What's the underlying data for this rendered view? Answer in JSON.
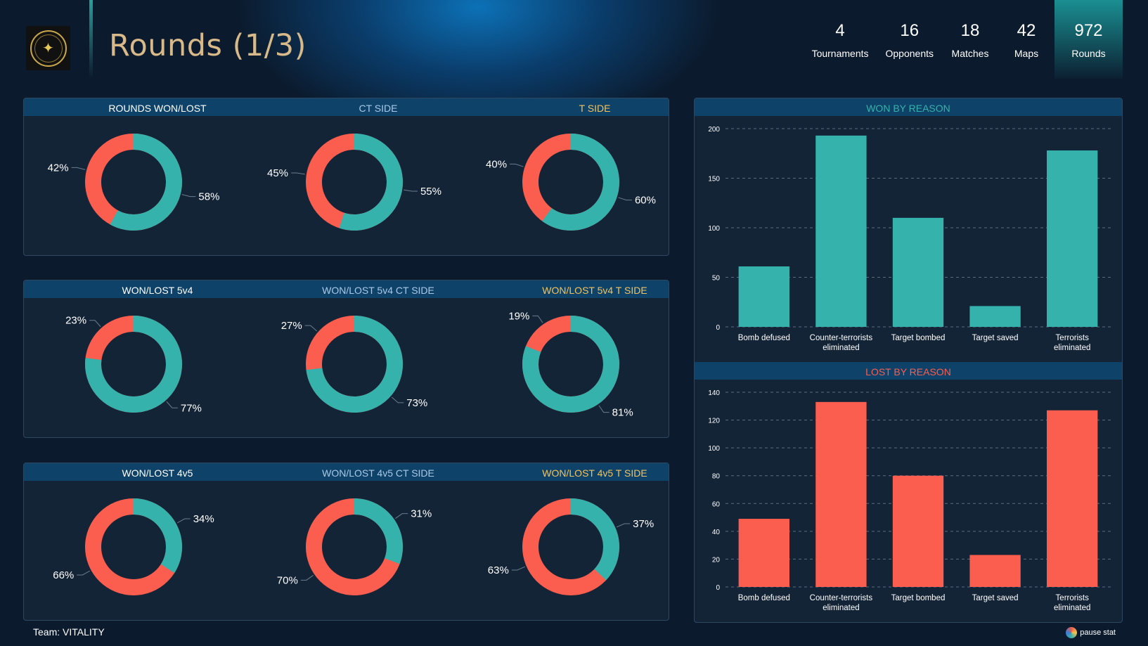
{
  "header": {
    "title": "Rounds (1/3)",
    "stats": [
      {
        "value": "4",
        "label": "Tournaments"
      },
      {
        "value": "16",
        "label": "Opponents"
      },
      {
        "value": "18",
        "label": "Matches"
      },
      {
        "value": "42",
        "label": "Maps"
      },
      {
        "value": "972",
        "label": "Rounds"
      }
    ],
    "active_stat": "Rounds"
  },
  "colors": {
    "won": "#35b2ab",
    "lost": "#fb5d4e",
    "header_white": "#ffffff",
    "header_blue": "#a9c9e8",
    "header_gold": "#f3c35c"
  },
  "footer": {
    "team": "Team: VITALITY",
    "brand": "pause stat"
  },
  "chart_data": [
    {
      "type": "pie",
      "title": "ROUNDS WON/LOST",
      "won_pct": 58,
      "lost_pct": 42,
      "won_label": "58%",
      "lost_label": "42%"
    },
    {
      "type": "pie",
      "title": "CT SIDE",
      "won_pct": 55,
      "lost_pct": 45,
      "won_label": "55%",
      "lost_label": "45%"
    },
    {
      "type": "pie",
      "title": "T SIDE",
      "won_pct": 60,
      "lost_pct": 40,
      "won_label": "60%",
      "lost_label": "40%"
    },
    {
      "type": "pie",
      "title": "WON/LOST 5v4",
      "won_pct": 77,
      "lost_pct": 23,
      "won_label": "77%",
      "lost_label": "23%"
    },
    {
      "type": "pie",
      "title": "WON/LOST 5v4 CT SIDE",
      "won_pct": 73,
      "lost_pct": 27,
      "won_label": "73%",
      "lost_label": "27%"
    },
    {
      "type": "pie",
      "title": "WON/LOST 5v4 T SIDE",
      "won_pct": 81,
      "lost_pct": 19,
      "won_label": "81%",
      "lost_label": "19%"
    },
    {
      "type": "pie",
      "title": "WON/LOST 4v5",
      "won_pct": 34,
      "lost_pct": 66,
      "won_label": "34%",
      "lost_label": "66%"
    },
    {
      "type": "pie",
      "title": "WON/LOST 4v5 CT SIDE",
      "won_pct": 31,
      "lost_pct": 70,
      "won_label": "31%",
      "lost_label": "70%"
    },
    {
      "type": "pie",
      "title": "WON/LOST 4v5 T SIDE",
      "won_pct": 37,
      "lost_pct": 63,
      "won_label": "37%",
      "lost_label": "63%"
    },
    {
      "type": "bar",
      "title": "WON BY REASON",
      "categories": [
        "Bomb defused",
        "Counter-terrorists eliminated",
        "Target bombed",
        "Target saved",
        "Terrorists eliminated"
      ],
      "values": [
        61,
        193,
        110,
        21,
        178
      ],
      "ylim": [
        0,
        200
      ],
      "yticks": [
        0,
        50,
        100,
        150,
        200
      ],
      "grid": true
    },
    {
      "type": "bar",
      "title": "LOST BY REASON",
      "categories": [
        "Bomb defused",
        "Counter-terrorists eliminated",
        "Target bombed",
        "Target saved",
        "Terrorists eliminated"
      ],
      "values": [
        49,
        133,
        80,
        23,
        127
      ],
      "ylim": [
        0,
        140
      ],
      "yticks": [
        0,
        20,
        40,
        60,
        80,
        100,
        120,
        140
      ],
      "grid": true
    }
  ]
}
